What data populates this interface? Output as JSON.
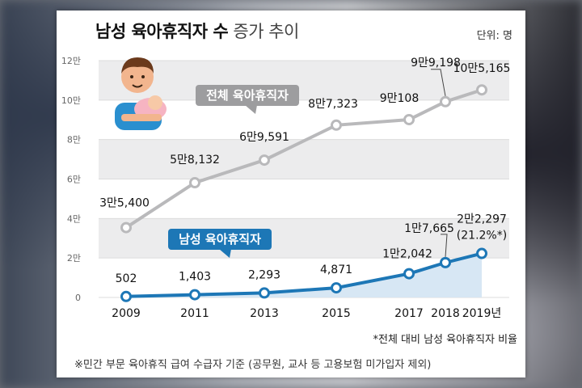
{
  "title_bold": "남성 육아휴직자 수",
  "title_light": "증가 추이",
  "unit_label": "단위: 명",
  "footnote_ratio": "*전체 대비 남성 육아휴직자 비율",
  "footnote_source": "※민간 부문 육아휴직 급여 수급자 기준 (공무원, 교사 등 고용보험 미가입자 제외)",
  "colors": {
    "total_line": "#b9b9bb",
    "male_line": "#1d77b6",
    "male_fill": "#d3e4f3",
    "label_total_box": "#9d9d9f",
    "label_male_box": "#1d77b6",
    "band": "#ececed"
  },
  "icon": "father-holding-baby-icon",
  "chart_data": {
    "type": "line",
    "x": [
      "2009",
      "2011",
      "2013",
      "2015",
      "2017",
      "2018",
      "2019년"
    ],
    "ylim": [
      0,
      120000
    ],
    "y_ticks": [
      "0",
      "2만",
      "4만",
      "6만",
      "8만",
      "10만",
      "12만"
    ],
    "grid": "alternating horizontal bands",
    "series": [
      {
        "name": "전체 육아휴직자",
        "values": [
          35400,
          58132,
          69591,
          87323,
          90108,
          99198,
          105165
        ],
        "labels": [
          "3만5,400",
          "5만8,132",
          "6만9,591",
          "8만7,323",
          "9만108",
          "9만9,198",
          "10만5,165"
        ]
      },
      {
        "name": "남성 육아휴직자",
        "values": [
          502,
          1403,
          2293,
          4871,
          12042,
          17665,
          22297
        ],
        "labels": [
          "502",
          "1,403",
          "2,293",
          "4,871",
          "1만2,042",
          "1만7,665",
          "2만2,297"
        ]
      }
    ],
    "annotation": "(21.2%*)"
  }
}
